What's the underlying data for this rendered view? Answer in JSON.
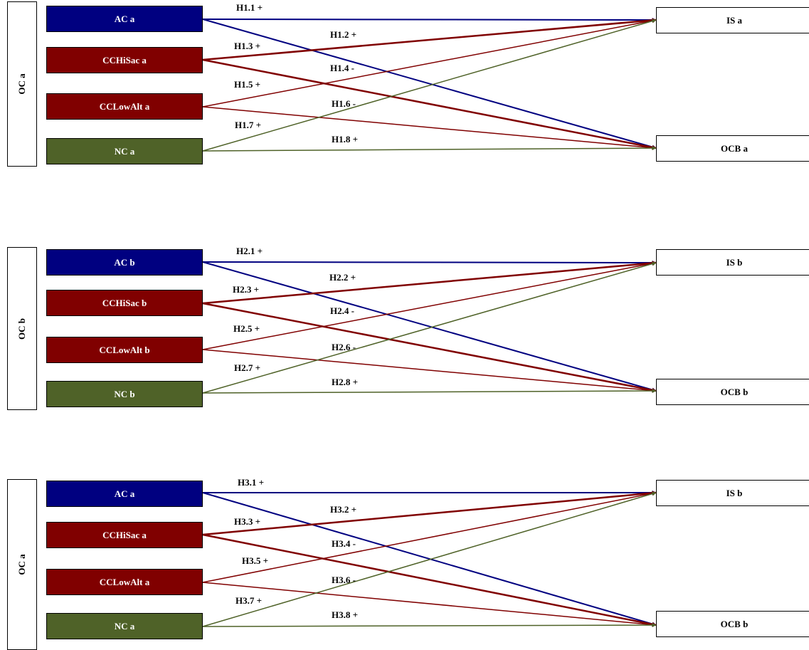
{
  "colors": {
    "blue": "#000080",
    "red": "#800000",
    "green": "#4f6228"
  },
  "panels": [
    {
      "group_label": "OC a",
      "constructs": [
        {
          "label": "AC a",
          "color": "blue"
        },
        {
          "label": "CCHiSac a",
          "color": "red"
        },
        {
          "label": "CCLowAlt a",
          "color": "red"
        },
        {
          "label": "NC a",
          "color": "green"
        }
      ],
      "outcomes": [
        {
          "label": "IS a"
        },
        {
          "label": "OCB a"
        }
      ],
      "hypotheses": [
        "H1.1 +",
        "H1.2 +",
        "H1.3 +",
        "H1.4 -",
        "H1.5 +",
        "H1.6 -",
        "H1.7 +",
        "H1.8 +"
      ]
    },
    {
      "group_label": "OC b",
      "constructs": [
        {
          "label": "AC b",
          "color": "blue"
        },
        {
          "label": "CCHiSac b",
          "color": "red"
        },
        {
          "label": "CCLowAlt b",
          "color": "red"
        },
        {
          "label": "NC b",
          "color": "green"
        }
      ],
      "outcomes": [
        {
          "label": "IS b"
        },
        {
          "label": "OCB b"
        }
      ],
      "hypotheses": [
        "H2.1 +",
        "H2.2 +",
        "H2.3 +",
        "H2.4 -",
        "H2.5 +",
        "H2.6 -",
        "H2.7 +",
        "H2.8 +"
      ]
    },
    {
      "group_label": "OC a",
      "constructs": [
        {
          "label": "AC a",
          "color": "blue"
        },
        {
          "label": "CCHiSac a",
          "color": "red"
        },
        {
          "label": "CCLowAlt a",
          "color": "red"
        },
        {
          "label": "NC a",
          "color": "green"
        }
      ],
      "outcomes": [
        {
          "label": "IS b"
        },
        {
          "label": "OCB b"
        }
      ],
      "hypotheses": [
        "H3.1 +",
        "H3.2 +",
        "H3.3 +",
        "H3.4 -",
        "H3.5 +",
        "H3.6 -",
        "H3.7 +",
        "H3.8 +"
      ]
    }
  ]
}
